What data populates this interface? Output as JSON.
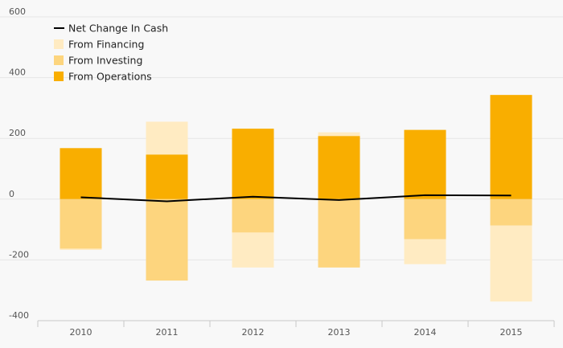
{
  "chart_data": {
    "type": "bar",
    "stacked": true,
    "categories": [
      "2010",
      "2011",
      "2012",
      "2013",
      "2014",
      "2015"
    ],
    "ylim": [
      -400,
      600
    ],
    "yticks": [
      -400,
      -200,
      0,
      200,
      400,
      600
    ],
    "grid": true,
    "legend_position": "top-left",
    "series": [
      {
        "name": "From Operations",
        "kind": "bar",
        "color": "#f9ae00",
        "values": [
          168,
          147,
          232,
          208,
          228,
          343
        ]
      },
      {
        "name": "From Investing",
        "kind": "bar",
        "color": "#fdd57e",
        "values": [
          -163,
          -268,
          -110,
          -225,
          -132,
          -87
        ]
      },
      {
        "name": "From Financing",
        "kind": "bar",
        "color": "#ffebc2",
        "values": [
          -4,
          108,
          -115,
          12,
          -82,
          -250
        ]
      },
      {
        "name": "Net Change In Cash",
        "kind": "line",
        "color": "#000000",
        "values": [
          6,
          -7,
          8,
          -3,
          13,
          12
        ]
      }
    ]
  }
}
